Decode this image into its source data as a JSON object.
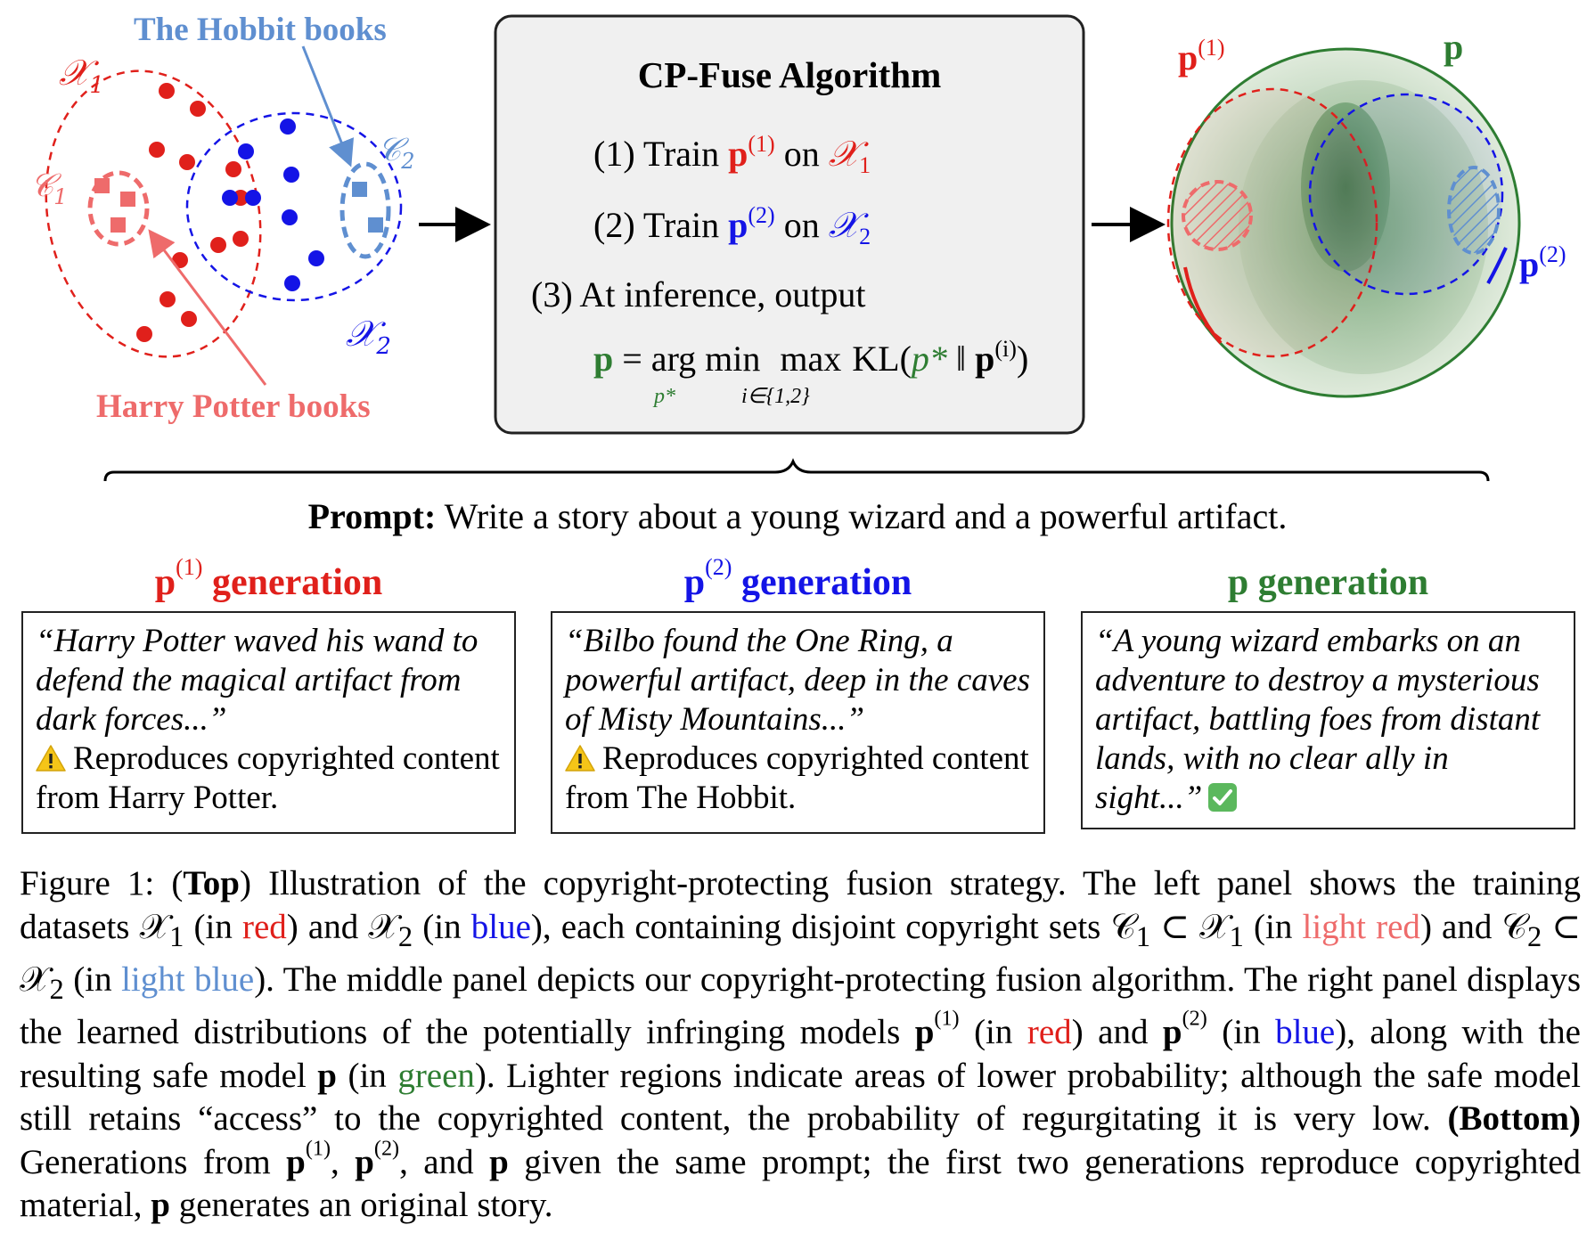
{
  "left_panel": {
    "label_hobbit": "The Hobbit books",
    "label_harry": "Harry Potter books",
    "label_x1": "𝒳",
    "label_x1_sub": "1",
    "label_x2": "𝒳",
    "label_x2_sub": "2",
    "label_c1": "𝒞",
    "label_c1_sub": "1",
    "label_c2": "𝒞",
    "label_c2_sub": "2"
  },
  "algorithm": {
    "title": "CP-Fuse Algorithm",
    "step1_prefix": "(1) Train ",
    "step1_model": "p",
    "step1_sup": "(1)",
    "step1_on": " on ",
    "step1_data": "𝒳",
    "step1_data_sub": "1",
    "step2_prefix": "(2) Train ",
    "step2_model": "p",
    "step2_sup": "(2)",
    "step2_on": " on ",
    "step2_data": "𝒳",
    "step2_data_sub": "2",
    "step3": "(3) At inference, output",
    "formula_lhs": "p",
    "formula_eq": "= arg min",
    "formula_under_min": "p*",
    "formula_max": "max",
    "formula_under_max": "i∈{1,2}",
    "formula_kl": "KL(",
    "formula_pstar": "p*",
    "formula_sep": " ‖ ",
    "formula_p": "p",
    "formula_psup": "(i)",
    "formula_close": ")"
  },
  "right_panel": {
    "label_p1": "p",
    "label_p1_sup": "(1)",
    "label_p": "p",
    "label_p2": "p",
    "label_p2_sup": "(2)"
  },
  "prompt": {
    "label": "Prompt:",
    "text": " Write a story about a young wizard and a powerful artifact."
  },
  "generations": [
    {
      "title_model": "p",
      "title_sup": "(1)",
      "title_word": " generation",
      "color": "#e0201b",
      "quote": "“Harry Potter waved his wand to defend the magical artifact from dark forces...”",
      "note": "Reproduces copyrighted content from Harry Potter.",
      "icon": "warning-icon"
    },
    {
      "title_model": "p",
      "title_sup": "(2)",
      "title_word": " generation",
      "color": "#1414e6",
      "quote": "“Bilbo found the One Ring, a powerful artifact, deep in the caves of Misty Mountains...”",
      "note": "Reproduces copyrighted content from The Hobbit.",
      "icon": "warning-icon"
    },
    {
      "title_model": "p",
      "title_sup": "",
      "title_word": " generation",
      "color": "#2e7d32",
      "quote": "“A young wizard embarks on an adventure to destroy a mysterious artifact, battling foes from distant lands, with no clear ally in sight...”",
      "note": "",
      "icon": "check-icon"
    }
  ],
  "caption": {
    "fig": "Figure 1: (",
    "top": "Top",
    "t1": ") Illustration of the copyright-protecting fusion strategy. The left panel shows the training datasets 𝒳",
    "t1_sub": "1",
    "t2": " (in ",
    "red1": "red",
    "t3": ") and 𝒳",
    "t3_sub": "2",
    "t4": " (in ",
    "blue1": "blue",
    "t5": "), each containing disjoint copyright sets 𝒞",
    "t5_sub": "1",
    "t6": " ⊂ 𝒳",
    "t6_sub": "1",
    "t7": " (in ",
    "lred": "light red",
    "t8": ") and 𝒞",
    "t8_sub": "2",
    "t9": " ⊂ 𝒳",
    "t9_sub": "2",
    "t10": " (in ",
    "lblue": "light blue",
    "t11": "). The middle panel depicts our copyright-protecting fusion algorithm. The right panel displays the learned distributions of the potentially infringing models ",
    "p1": "p",
    "p1_sup": "(1)",
    "t12": " (in ",
    "red2": "red",
    "t13": ") and ",
    "p2": "p",
    "p2_sup": "(2)",
    "t14": " (in ",
    "blue2": "blue",
    "t15": "), along with the resulting safe model ",
    "p": "p",
    "t16": " (in ",
    "green": "green",
    "t17": "). Lighter regions indicate areas of lower probability; although the safe model still retains “access” to the copyrighted content, the probability of regurgitating it is very low. ",
    "bottom": "(Bottom)",
    "t18": " Generations from ",
    "q1": "p",
    "q1_sup": "(1)",
    "t19": ", ",
    "q2": "p",
    "q2_sup": "(2)",
    "t20": ", and ",
    "q": "p",
    "t21": " given the same prompt; the first two generations reproduce copyrighted material, ",
    "q3": "p",
    "t22": " generates an original story."
  },
  "colors": {
    "red": "#e0201b",
    "blue": "#1414e6",
    "light_red": "#ee6b6b",
    "light_blue": "#5f8fd0",
    "green": "#2e7d32"
  }
}
